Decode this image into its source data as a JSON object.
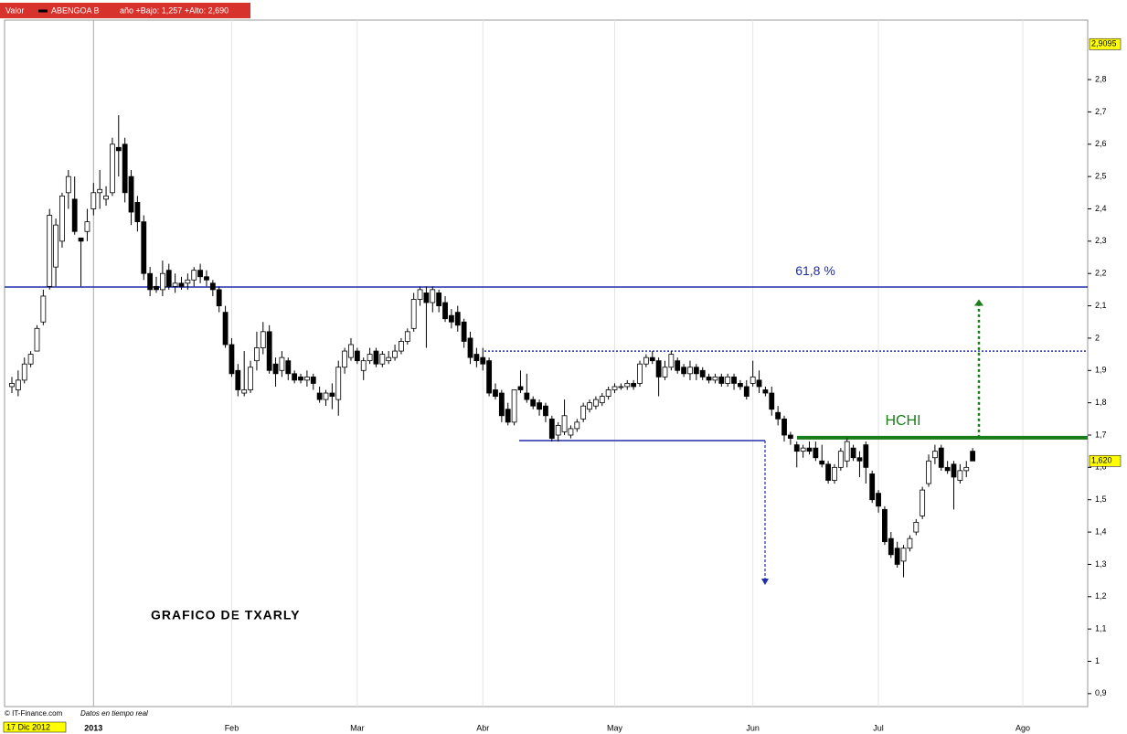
{
  "chart_data": {
    "type": "candlestick",
    "header": {
      "field": "Valor",
      "range_text": "año +Bajo: 1,257 +Alto: 2,690"
    },
    "annotation_title": "GRAFICO DE TXARLY",
    "footer": {
      "source": "© IT-Finance.com",
      "note": "Datos en tiempo real"
    },
    "categories": [
      "17 Dic 2012",
      null,
      null,
      null,
      null,
      null,
      null,
      null,
      null,
      null,
      null,
      null,
      null,
      "2013",
      null,
      null,
      null,
      null,
      null,
      null,
      null,
      null,
      null,
      null,
      null,
      null,
      null,
      null,
      null,
      null,
      null,
      null,
      null,
      null,
      null,
      "Feb",
      null,
      null,
      null,
      null,
      null,
      null,
      null,
      null,
      null,
      null,
      null,
      null,
      null,
      null,
      null,
      null,
      null,
      null,
      null,
      "Mar",
      null,
      null,
      null,
      null,
      null,
      null,
      null,
      null,
      null,
      null,
      null,
      null,
      null,
      null,
      null,
      null,
      null,
      null,
      null,
      "Abr",
      null,
      null,
      null,
      null,
      null,
      null,
      null,
      null,
      null,
      null,
      null,
      null,
      null,
      null,
      null,
      null,
      null,
      null,
      null,
      null,
      "May",
      null,
      null,
      null,
      null,
      null,
      null,
      null,
      null,
      null,
      null,
      null,
      null,
      null,
      null,
      null,
      null,
      null,
      null,
      null,
      null,
      null,
      "Jun",
      null,
      null,
      null,
      null,
      null,
      null,
      null,
      null,
      null,
      null,
      null,
      null,
      null,
      null,
      null,
      null,
      null,
      null,
      null,
      "Jul",
      null,
      null,
      null,
      null,
      null,
      null,
      null,
      null,
      null,
      null,
      null,
      null,
      null,
      null,
      null,
      null,
      null,
      null,
      null,
      null,
      null,
      null,
      "Ago",
      null,
      null,
      null,
      null,
      null,
      null,
      null,
      null,
      null,
      null
    ],
    "series": [
      {
        "name": "ABENGOA B",
        "up_color": "#ffffff",
        "down_color": "#000000",
        "open": [
          1.85,
          1.84,
          1.87,
          1.92,
          1.96,
          2.05,
          2.16,
          2.22,
          2.3,
          2.45,
          2.43,
          2.31,
          2.33,
          2.4,
          2.45,
          2.43,
          2.45,
          2.59,
          2.6,
          2.5,
          2.42,
          2.36,
          2.2,
          2.16,
          2.15,
          2.21,
          2.16,
          2.17,
          2.17,
          2.18,
          2.21,
          2.19,
          2.17,
          2.15,
          2.08,
          1.98,
          1.9,
          1.83,
          1.84,
          1.93,
          1.97,
          2.02,
          1.92,
          1.9,
          1.93,
          1.89,
          1.88,
          1.87,
          1.88,
          1.83,
          1.81,
          1.83,
          1.81,
          1.91,
          1.94,
          1.96,
          1.9,
          1.93,
          1.96,
          1.92,
          1.93,
          1.94,
          1.96,
          1.99,
          2.03,
          2.12,
          2.14,
          2.11,
          2.14,
          2.11,
          2.07,
          2.08,
          2.05,
          2.0,
          1.95,
          1.94,
          1.93,
          1.84,
          1.83,
          1.78,
          1.74,
          1.85,
          1.83,
          1.81,
          1.8,
          1.79,
          1.75,
          1.7,
          1.71,
          1.7,
          1.72,
          1.75,
          1.78,
          1.79,
          1.8,
          1.82,
          1.84,
          1.85,
          1.85,
          1.86,
          1.86,
          1.92,
          1.94,
          1.93,
          1.88,
          1.91,
          1.93,
          1.91,
          1.89,
          1.91,
          1.9,
          1.88,
          1.87,
          1.88,
          1.86,
          1.88,
          1.86,
          1.85,
          1.86,
          1.87,
          1.84,
          1.83,
          1.77,
          1.75,
          1.7,
          1.67,
          1.65,
          1.66,
          1.66,
          1.62,
          1.61,
          1.56,
          1.6,
          1.62,
          1.66,
          1.63,
          1.67,
          1.58,
          1.52,
          1.47,
          1.38,
          1.35,
          1.31,
          1.35,
          1.4,
          1.45,
          1.55,
          1.63,
          1.66,
          1.6,
          1.61,
          1.56,
          1.59,
          1.65,
          null,
          null,
          null,
          null,
          null,
          null,
          null,
          null,
          null,
          null,
          null,
          null,
          null,
          null,
          null,
          null,
          null,
          null
        ],
        "high": [
          1.88,
          1.9,
          1.94,
          1.96,
          2.04,
          2.15,
          2.4,
          2.37,
          2.45,
          2.52,
          2.5,
          2.31,
          2.4,
          2.48,
          2.52,
          2.47,
          2.62,
          2.69,
          2.62,
          2.52,
          2.44,
          2.38,
          2.22,
          2.19,
          2.24,
          2.23,
          2.2,
          2.19,
          2.2,
          2.22,
          2.23,
          2.21,
          2.18,
          2.16,
          2.1,
          2.0,
          1.92,
          1.96,
          1.93,
          2.02,
          2.05,
          2.04,
          1.94,
          1.96,
          1.94,
          1.9,
          1.89,
          1.9,
          1.89,
          1.85,
          1.84,
          1.86,
          1.93,
          1.97,
          2.0,
          1.97,
          1.94,
          1.97,
          1.97,
          1.96,
          1.96,
          1.98,
          2.0,
          2.03,
          2.14,
          2.16,
          2.16,
          2.16,
          2.15,
          2.13,
          2.09,
          2.1,
          2.06,
          2.02,
          1.97,
          1.97,
          1.94,
          1.86,
          1.84,
          1.8,
          1.84,
          1.9,
          1.89,
          1.82,
          1.81,
          1.8,
          1.76,
          1.74,
          1.81,
          1.73,
          1.75,
          1.8,
          1.81,
          1.82,
          1.83,
          1.85,
          1.86,
          1.86,
          1.87,
          1.87,
          1.93,
          1.95,
          1.96,
          1.94,
          1.93,
          1.96,
          1.94,
          1.92,
          1.93,
          1.92,
          1.91,
          1.89,
          1.89,
          1.89,
          1.89,
          1.89,
          1.87,
          1.87,
          1.93,
          1.9,
          1.85,
          1.85,
          1.79,
          1.76,
          1.71,
          1.68,
          1.67,
          1.68,
          1.68,
          1.67,
          1.62,
          1.61,
          1.66,
          1.69,
          1.67,
          1.65,
          1.68,
          1.59,
          1.53,
          1.48,
          1.4,
          1.37,
          1.36,
          1.39,
          1.44,
          1.54,
          1.64,
          1.67,
          1.67,
          1.62,
          1.62,
          1.61,
          1.62,
          1.66,
          null,
          null,
          null,
          null,
          null,
          null,
          null,
          null,
          null,
          null,
          null,
          null,
          null,
          null,
          null,
          null,
          null,
          null
        ],
        "low": [
          1.83,
          1.82,
          1.86,
          1.91,
          1.96,
          2.04,
          2.15,
          2.16,
          2.28,
          2.4,
          2.32,
          2.16,
          2.3,
          2.38,
          2.4,
          2.41,
          2.44,
          2.5,
          2.42,
          2.35,
          2.33,
          2.18,
          2.13,
          2.14,
          2.13,
          2.15,
          2.14,
          2.15,
          2.15,
          2.16,
          2.17,
          2.16,
          2.13,
          2.08,
          1.97,
          1.88,
          1.82,
          1.82,
          1.83,
          1.9,
          1.95,
          1.89,
          1.85,
          1.88,
          1.87,
          1.86,
          1.86,
          1.85,
          1.84,
          1.8,
          1.79,
          1.78,
          1.76,
          1.89,
          1.93,
          1.92,
          1.87,
          1.92,
          1.91,
          1.91,
          1.92,
          1.93,
          1.95,
          1.98,
          2.02,
          2.1,
          1.97,
          2.08,
          2.08,
          2.05,
          2.03,
          2.02,
          1.97,
          1.92,
          1.91,
          1.9,
          1.82,
          1.81,
          1.74,
          1.73,
          1.73,
          1.83,
          1.8,
          1.78,
          1.76,
          1.74,
          1.68,
          1.68,
          1.7,
          1.69,
          1.71,
          1.74,
          1.77,
          1.78,
          1.79,
          1.81,
          1.83,
          1.84,
          1.84,
          1.84,
          1.85,
          1.91,
          1.92,
          1.82,
          1.87,
          1.9,
          1.89,
          1.88,
          1.87,
          1.87,
          1.87,
          1.86,
          1.86,
          1.85,
          1.85,
          1.84,
          1.84,
          1.81,
          1.85,
          1.83,
          1.82,
          1.76,
          1.73,
          1.68,
          1.67,
          1.6,
          1.63,
          1.64,
          1.62,
          1.6,
          1.55,
          1.55,
          1.59,
          1.6,
          1.62,
          1.57,
          1.55,
          1.49,
          1.46,
          1.36,
          1.32,
          1.29,
          1.26,
          1.34,
          1.39,
          1.44,
          1.54,
          1.61,
          1.59,
          1.58,
          1.47,
          1.55,
          1.57,
          1.62,
          null,
          null,
          null,
          null,
          null,
          null,
          null,
          null,
          null,
          null,
          null,
          null,
          null,
          null,
          null,
          null,
          null,
          null
        ],
        "close": [
          1.86,
          1.87,
          1.92,
          1.95,
          2.03,
          2.13,
          2.38,
          2.35,
          2.44,
          2.5,
          2.33,
          2.3,
          2.36,
          2.45,
          2.46,
          2.44,
          2.6,
          2.58,
          2.45,
          2.39,
          2.36,
          2.2,
          2.15,
          2.15,
          2.2,
          2.16,
          2.17,
          2.16,
          2.18,
          2.21,
          2.19,
          2.18,
          2.15,
          2.1,
          1.98,
          1.89,
          1.84,
          1.84,
          1.91,
          1.97,
          2.02,
          1.9,
          1.89,
          1.94,
          1.89,
          1.87,
          1.87,
          1.88,
          1.86,
          1.81,
          1.83,
          1.82,
          1.91,
          1.96,
          1.98,
          1.93,
          1.93,
          1.95,
          1.92,
          1.95,
          1.94,
          1.96,
          1.99,
          2.02,
          2.12,
          2.15,
          2.11,
          2.15,
          2.1,
          2.06,
          2.05,
          2.04,
          1.99,
          1.94,
          1.93,
          1.92,
          1.83,
          1.82,
          1.76,
          1.74,
          1.84,
          1.84,
          1.81,
          1.79,
          1.78,
          1.76,
          1.69,
          1.73,
          1.76,
          1.72,
          1.74,
          1.79,
          1.8,
          1.81,
          1.82,
          1.84,
          1.85,
          1.85,
          1.86,
          1.85,
          1.92,
          1.94,
          1.93,
          1.88,
          1.91,
          1.95,
          1.9,
          1.89,
          1.91,
          1.89,
          1.88,
          1.87,
          1.88,
          1.86,
          1.88,
          1.86,
          1.85,
          1.82,
          1.88,
          1.85,
          1.83,
          1.78,
          1.75,
          1.7,
          1.69,
          1.65,
          1.66,
          1.65,
          1.63,
          1.61,
          1.56,
          1.6,
          1.65,
          1.68,
          1.63,
          1.62,
          1.6,
          1.5,
          1.48,
          1.37,
          1.33,
          1.3,
          1.35,
          1.38,
          1.43,
          1.53,
          1.62,
          1.65,
          1.6,
          1.59,
          1.57,
          1.59,
          1.6,
          1.62,
          null,
          null,
          null,
          null,
          null,
          null,
          null,
          null,
          null,
          null,
          null,
          null,
          null,
          null,
          null,
          null,
          null,
          null
        ]
      }
    ],
    "ylim": [
      0.86,
      2.984
    ],
    "yticks": [
      {
        "value": 0.9,
        "label": "0,9"
      },
      1,
      {
        "value": 1.1,
        "label": "1,1"
      },
      {
        "value": 1.2,
        "label": "1,2"
      },
      {
        "value": 1.3,
        "label": "1,3"
      },
      {
        "value": 1.4,
        "label": "1,4"
      },
      {
        "value": 1.5,
        "label": "1,5"
      },
      {
        "value": 1.6,
        "label": "1,6"
      },
      {
        "value": 1.7,
        "label": "1,7"
      },
      {
        "value": 1.8,
        "label": "1,8"
      },
      {
        "value": 1.9,
        "label": "1,9"
      },
      2,
      {
        "value": 2.1,
        "label": "2,1"
      },
      {
        "value": 2.2,
        "label": "2,2"
      },
      {
        "value": 2.3,
        "label": "2,3"
      },
      {
        "value": 2.4,
        "label": "2,4"
      },
      {
        "value": 2.5,
        "label": "2,5"
      },
      {
        "value": 2.6,
        "label": "2,6"
      },
      {
        "value": 2.7,
        "label": "2,7"
      },
      {
        "value": 2.8,
        "label": "2,8"
      }
    ],
    "price_markers": [
      {
        "value": 2.9095,
        "label": "2,9095"
      },
      {
        "value": 1.62,
        "label": "1,620"
      }
    ],
    "levels": [
      {
        "value": 2.158,
        "color": "#1f2fa8",
        "style": "solid",
        "label": "61,8 %"
      },
      {
        "value": 1.96,
        "color": "#1f2fa8",
        "style": "dotted"
      },
      {
        "value": 1.683,
        "color": "#1f2fa8",
        "style": "solid",
        "target": 1.236
      },
      {
        "value": 1.692,
        "color": "#1a7d1a",
        "style": "thick",
        "label": "HCHI",
        "target": 2.12
      }
    ],
    "grid": true
  }
}
